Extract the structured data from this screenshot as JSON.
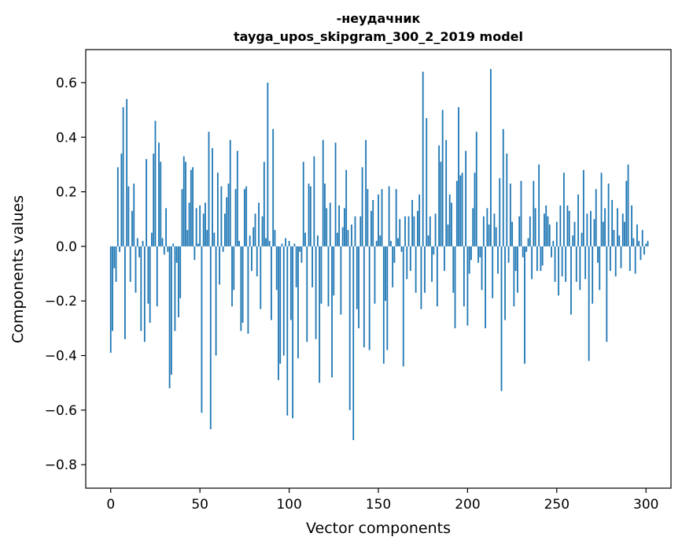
{
  "chart_data": {
    "type": "bar",
    "title": "-неудачник",
    "subtitle": "tayga_upos_skipgram_300_2_2019 model",
    "xlabel": "Vector components",
    "ylabel": "Components values",
    "xlim": [
      -14,
      314
    ],
    "ylim": [
      -0.886,
      0.721
    ],
    "grid": false,
    "color": "#1f77b4",
    "x_ticks": [
      {
        "value": 0,
        "label": "0"
      },
      {
        "value": 50,
        "label": "50"
      },
      {
        "value": 100,
        "label": "100"
      },
      {
        "value": 150,
        "label": "150"
      },
      {
        "value": 200,
        "label": "200"
      },
      {
        "value": 250,
        "label": "250"
      },
      {
        "value": 300,
        "label": "300"
      }
    ],
    "y_ticks": [
      {
        "value": -0.8,
        "label": "−0.8"
      },
      {
        "value": -0.6,
        "label": "−0.6"
      },
      {
        "value": -0.4,
        "label": "−0.4"
      },
      {
        "value": -0.2,
        "label": "−0.2"
      },
      {
        "value": 0.0,
        "label": "0.0"
      },
      {
        "value": 0.2,
        "label": "0.2"
      },
      {
        "value": 0.4,
        "label": "0.4"
      },
      {
        "value": 0.6,
        "label": "0.6"
      }
    ],
    "values": [
      -0.39,
      -0.31,
      -0.08,
      -0.13,
      0.29,
      -0.02,
      0.34,
      0.51,
      -0.34,
      0.54,
      0.22,
      -0.13,
      0.13,
      0.23,
      -0.17,
      0.03,
      -0.04,
      -0.31,
      0.02,
      -0.35,
      0.32,
      -0.21,
      -0.28,
      0.05,
      0.34,
      0.46,
      -0.22,
      0.38,
      0.31,
      0.03,
      -0.03,
      0.14,
      -0.02,
      -0.52,
      -0.47,
      0.01,
      -0.31,
      -0.06,
      -0.26,
      -0.19,
      0.21,
      0.33,
      0.31,
      0.06,
      0.16,
      0.28,
      0.29,
      -0.05,
      0.14,
      0.01,
      0.15,
      -0.61,
      0.12,
      0.16,
      0.06,
      0.42,
      -0.67,
      0.36,
      0.05,
      -0.4,
      0.27,
      -0.14,
      0.22,
      -0.02,
      0.12,
      0.18,
      0.23,
      0.39,
      -0.22,
      -0.16,
      0.21,
      0.35,
      0.02,
      -0.31,
      -0.28,
      0.21,
      0.22,
      -0.32,
      0.04,
      -0.09,
      0.07,
      0.12,
      -0.11,
      0.16,
      -0.23,
      0.11,
      0.31,
      0.03,
      0.6,
      0.02,
      -0.27,
      0.43,
      0.06,
      -0.16,
      -0.49,
      -0.43,
      0.01,
      -0.4,
      0.03,
      -0.62,
      0.02,
      -0.27,
      -0.63,
      0.01,
      -0.15,
      -0.41,
      -0.02,
      -0.06,
      0.31,
      0.05,
      -0.35,
      0.23,
      0.22,
      -0.15,
      0.33,
      -0.34,
      0.04,
      -0.5,
      -0.21,
      0.39,
      0.23,
      0.14,
      -0.22,
      0.16,
      -0.48,
      -0.18,
      0.38,
      0.05,
      0.15,
      -0.25,
      0.07,
      0.14,
      0.28,
      0.06,
      -0.6,
      0.08,
      -0.71,
      0.11,
      -0.23,
      -0.3,
      0.11,
      0.29,
      -0.37,
      0.39,
      0.21,
      -0.38,
      0.13,
      0.17,
      -0.21,
      0.02,
      0.19,
      0.04,
      0.21,
      -0.43,
      -0.2,
      -0.38,
      0.22,
      0.02,
      -0.15,
      -0.06,
      0.21,
      0.03,
      0.1,
      -0.02,
      -0.44,
      0.11,
      -0.12,
      0.11,
      -0.09,
      0.17,
      0.11,
      -0.17,
      0.13,
      0.19,
      -0.23,
      0.64,
      -0.17,
      0.47,
      0.04,
      0.11,
      -0.13,
      -0.03,
      0.12,
      -0.22,
      0.37,
      0.31,
      0.5,
      -0.09,
      0.39,
      0.08,
      0.19,
      0.16,
      -0.17,
      -0.3,
      0.24,
      0.51,
      0.26,
      0.27,
      -0.22,
      0.35,
      -0.29,
      -0.1,
      -0.05,
      0.14,
      0.27,
      0.42,
      -0.06,
      -0.04,
      -0.16,
      0.11,
      -0.3,
      0.14,
      0.08,
      0.65,
      -0.19,
      0.12,
      0.07,
      -0.1,
      0.25,
      -0.53,
      0.43,
      -0.27,
      0.34,
      -0.06,
      0.23,
      0.09,
      -0.22,
      -0.09,
      -0.17,
      0.11,
      0.24,
      -0.04,
      -0.43,
      -0.02,
      0.03,
      0.11,
      -0.12,
      0.24,
      0.14,
      -0.09,
      0.3,
      -0.09,
      -0.07,
      0.12,
      0.15,
      0.11,
      0.08,
      -0.04,
      0.02,
      -0.13,
      0.09,
      -0.18,
      0.15,
      -0.11,
      0.27,
      -0.13,
      0.15,
      0.13,
      -0.25,
      0.04,
      0.09,
      -0.13,
      0.19,
      -0.16,
      0.05,
      0.28,
      -0.12,
      0.12,
      -0.42,
      0.13,
      -0.21,
      0.1,
      0.21,
      -0.06,
      -0.16,
      0.27,
      0.09,
      0.14,
      -0.35,
      0.23,
      -0.09,
      0.17,
      0.06,
      -0.11,
      0.14,
      0.04,
      -0.08,
      0.12,
      0.09,
      0.24,
      0.3,
      -0.09,
      0.15,
      0.03,
      -0.1,
      0.08,
      0.02,
      -0.05,
      0.06,
      -0.03,
      0.01,
      0.02
    ]
  }
}
